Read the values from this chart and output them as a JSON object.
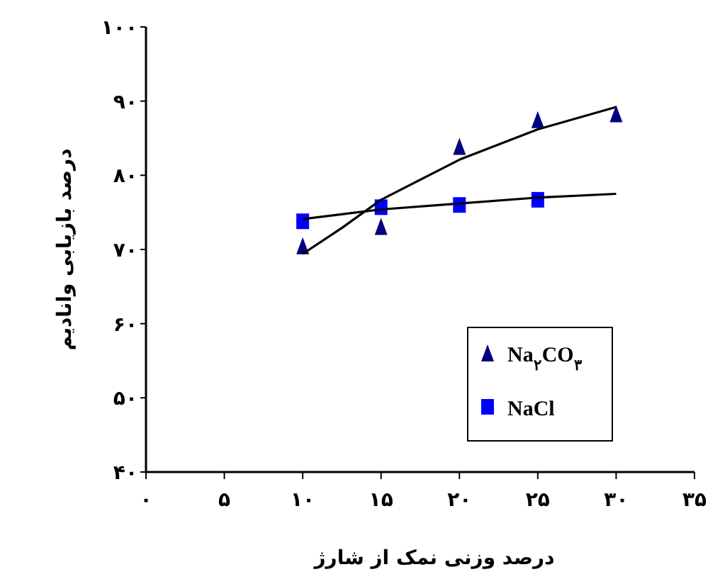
{
  "chart_data": {
    "type": "scatter",
    "xlabel": "درصد وزنی نمک از شارژ",
    "ylabel": "درصد بازیابی وانادیم",
    "xlim": [
      0,
      35
    ],
    "ylim": [
      40,
      100
    ],
    "xticks": [
      {
        "value": 0,
        "label": "۰"
      },
      {
        "value": 5,
        "label": "۵"
      },
      {
        "value": 10,
        "label": "۱۰"
      },
      {
        "value": 15,
        "label": "۱۵"
      },
      {
        "value": 20,
        "label": "۲۰"
      },
      {
        "value": 25,
        "label": "۲۵"
      },
      {
        "value": 30,
        "label": "۳۰"
      },
      {
        "value": 35,
        "label": "۳۵"
      }
    ],
    "yticks": [
      {
        "value": 40,
        "label": "۴۰"
      },
      {
        "value": 50,
        "label": "۵۰"
      },
      {
        "value": 60,
        "label": "۶۰"
      },
      {
        "value": 70,
        "label": "۷۰"
      },
      {
        "value": 80,
        "label": "۸۰"
      },
      {
        "value": 90,
        "label": "۹۰"
      },
      {
        "value": 100,
        "label": "۱۰۰"
      }
    ],
    "legend": "right",
    "grid": false,
    "series": [
      {
        "name": "Na$_{۲}$CO$_{۳}$",
        "marker": "triangle",
        "color": "#000080",
        "x": [
          10,
          15,
          20,
          25,
          30
        ],
        "values": [
          70.5,
          73.1,
          83.9,
          87.5,
          88.3
        ]
      },
      {
        "name": "NaCl",
        "marker": "square",
        "color": "#0000ff",
        "x": [
          10,
          15,
          20,
          25
        ],
        "values": [
          73.8,
          75.7,
          76.0,
          76.7
        ]
      },
      {
        "type": "line",
        "color": "#000000",
        "x": [
          10,
          12.5,
          15,
          20,
          25,
          30
        ],
        "values": [
          69.4,
          72.9,
          76.7,
          82.1,
          86.2,
          89.2
        ]
      },
      {
        "type": "line",
        "color": "#000000",
        "x": [
          10,
          15,
          20,
          25,
          30
        ],
        "values": [
          74.1,
          75.4,
          76.2,
          77.0,
          77.5
        ]
      }
    ]
  }
}
